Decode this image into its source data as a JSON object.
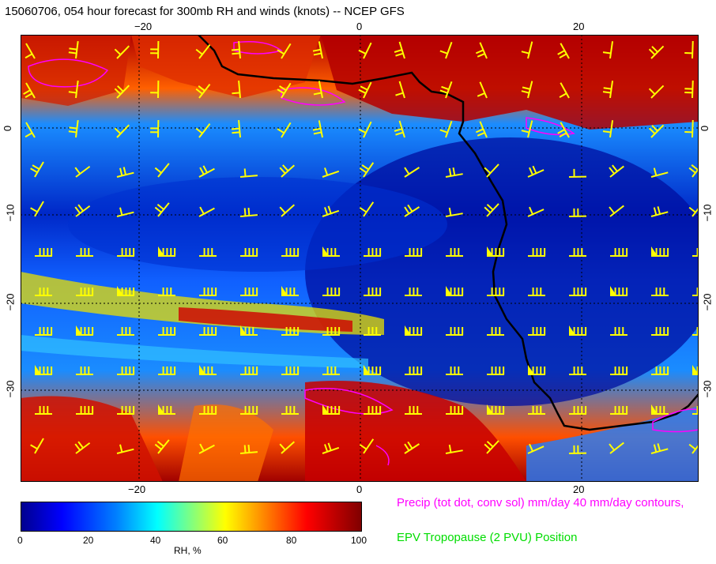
{
  "title": "15060706, 054 hour forecast for 300mb RH and winds (knots) -- NCEP GFS",
  "axes": {
    "top_ticks": [
      "−20",
      "0",
      "20"
    ],
    "bottom_ticks": [
      "−20",
      "0",
      "20"
    ],
    "left_ticks": [
      "0",
      "−10",
      "−20",
      "−30"
    ],
    "right_ticks": [
      "0",
      "−10",
      "−20",
      "−30"
    ]
  },
  "colorbar": {
    "ticks": [
      "0",
      "20",
      "40",
      "60",
      "80",
      "100"
    ],
    "label": "RH, %"
  },
  "legend": {
    "precip": "Precip (tot dot, conv sol) mm/day 40 mm/day contours,",
    "epv": "EPV Tropopause (2 PVU) Position"
  },
  "colors": {
    "wind_barbs": "#ffff00",
    "precip_contours": "#ff00ff",
    "coastline": "#000000",
    "epv_text": "#00dd00"
  }
}
